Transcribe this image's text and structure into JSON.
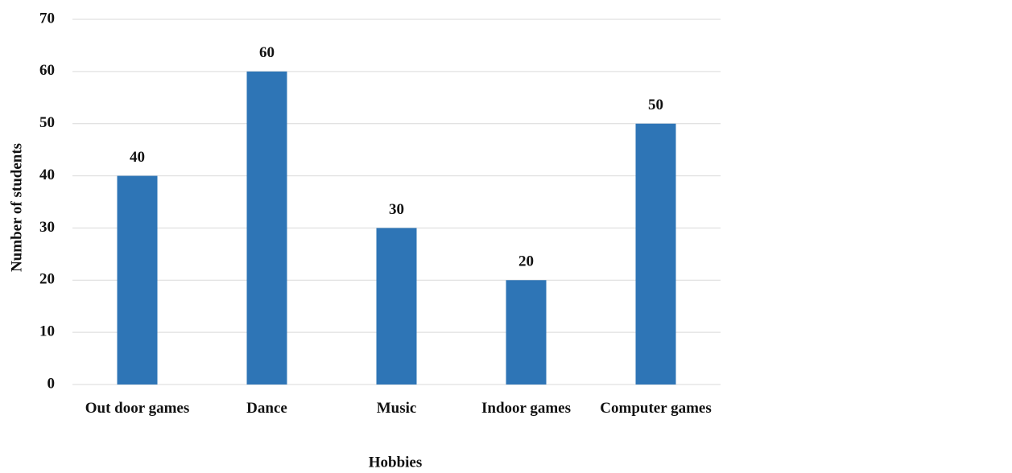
{
  "chart_data": {
    "type": "bar",
    "x_label": "Hobbies",
    "y_label": "Number of students",
    "categories": [
      "Out door games",
      "Dance",
      "Music",
      "Indoor games",
      "Computer games"
    ],
    "values": [
      40,
      60,
      30,
      20,
      50
    ],
    "color": "#2e75b6",
    "ylim": [
      0,
      70
    ],
    "yticks": [
      0,
      10,
      20,
      30,
      40,
      50,
      60,
      70
    ],
    "grid": true
  }
}
